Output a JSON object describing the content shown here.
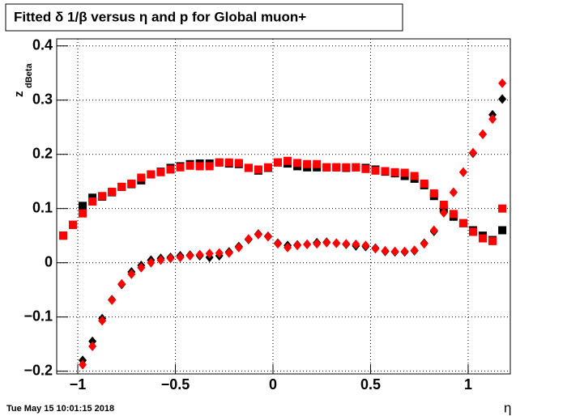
{
  "chart_data": {
    "type": "scatter",
    "title": "Fitted δ 1/β versus η and p for Global muon+",
    "x_label": "η",
    "y_label": "z",
    "y_label_sub": "dBeta",
    "footer": "Tue May 15 10:01:15 2018",
    "x": [
      -1.075,
      -1.025,
      -0.975,
      -0.925,
      -0.875,
      -0.825,
      -0.775,
      -0.725,
      -0.675,
      -0.625,
      -0.575,
      -0.525,
      -0.475,
      -0.425,
      -0.375,
      -0.325,
      -0.275,
      -0.225,
      -0.175,
      -0.125,
      -0.075,
      -0.025,
      0.025,
      0.075,
      0.125,
      0.175,
      0.225,
      0.275,
      0.325,
      0.375,
      0.425,
      0.475,
      0.525,
      0.575,
      0.625,
      0.675,
      0.725,
      0.775,
      0.825,
      0.875,
      0.925,
      0.975,
      1.025,
      1.075,
      1.125,
      1.175
    ],
    "series": [
      {
        "color": "#000000",
        "marker": "square",
        "values": [
          0.05,
          0.07,
          0.105,
          0.12,
          0.122,
          0.13,
          0.14,
          0.145,
          0.152,
          0.163,
          0.168,
          0.175,
          0.178,
          0.182,
          0.183,
          0.183,
          0.185,
          0.183,
          0.182,
          0.175,
          0.17,
          0.175,
          0.185,
          0.183,
          0.178,
          0.176,
          0.176,
          0.176,
          0.176,
          0.175,
          0.176,
          0.175,
          0.172,
          0.168,
          0.165,
          0.16,
          0.155,
          0.143,
          0.123,
          0.1,
          0.085,
          0.073,
          0.06,
          0.05,
          0.042,
          0.06
        ]
      },
      {
        "color": "#ff0000",
        "marker": "square",
        "values": [
          0.05,
          0.07,
          0.091,
          0.113,
          0.123,
          0.131,
          0.14,
          0.146,
          0.157,
          0.163,
          0.167,
          0.172,
          0.176,
          0.179,
          0.178,
          0.178,
          0.185,
          0.185,
          0.184,
          0.175,
          0.172,
          0.176,
          0.185,
          0.188,
          0.184,
          0.182,
          0.182,
          0.176,
          0.176,
          0.176,
          0.176,
          0.173,
          0.17,
          0.169,
          0.167,
          0.166,
          0.16,
          0.146,
          0.128,
          0.107,
          0.09,
          0.073,
          0.057,
          0.045,
          0.04,
          0.1
        ]
      },
      {
        "color": "#000000",
        "marker": "diamond",
        "values": [
          null,
          null,
          -0.18,
          -0.145,
          -0.103,
          -0.068,
          -0.04,
          -0.017,
          -0.005,
          0.005,
          0.008,
          0.01,
          0.013,
          0.014,
          0.013,
          0.01,
          0.013,
          0.02,
          0.03,
          0.043,
          0.053,
          0.049,
          0.036,
          0.032,
          0.033,
          0.034,
          0.037,
          0.038,
          0.036,
          0.034,
          0.031,
          0.03,
          0.027,
          0.021,
          0.02,
          0.02,
          0.022,
          0.036,
          0.058,
          0.093,
          0.13,
          0.167,
          0.202,
          0.237,
          0.273,
          0.302
        ]
      },
      {
        "color": "#ff0000",
        "marker": "diamond",
        "values": [
          null,
          null,
          -0.188,
          -0.154,
          -0.107,
          -0.069,
          -0.039,
          -0.021,
          -0.009,
          0.0,
          0.005,
          0.008,
          0.01,
          0.013,
          0.015,
          0.017,
          0.018,
          0.018,
          0.028,
          0.044,
          0.052,
          0.048,
          0.035,
          0.028,
          0.032,
          0.034,
          0.035,
          0.037,
          0.036,
          0.035,
          0.034,
          0.032,
          0.026,
          0.022,
          0.021,
          0.021,
          0.023,
          0.035,
          0.06,
          0.092,
          0.13,
          0.167,
          0.203,
          0.237,
          0.265,
          0.331
        ]
      }
    ],
    "xlim": [
      -1.108,
      1.216
    ],
    "ylim": [
      -0.205,
      0.413
    ],
    "xticks": [
      {
        "value": -1,
        "label": "−1"
      },
      {
        "value": -0.5,
        "label": "−0.5"
      },
      0,
      0.5,
      1
    ],
    "yticks": [
      {
        "value": -0.2,
        "label": "−0.2"
      },
      {
        "value": -0.1,
        "label": "−0.1"
      },
      0,
      0.1,
      0.2,
      0.3,
      0.4
    ],
    "grid": true
  }
}
